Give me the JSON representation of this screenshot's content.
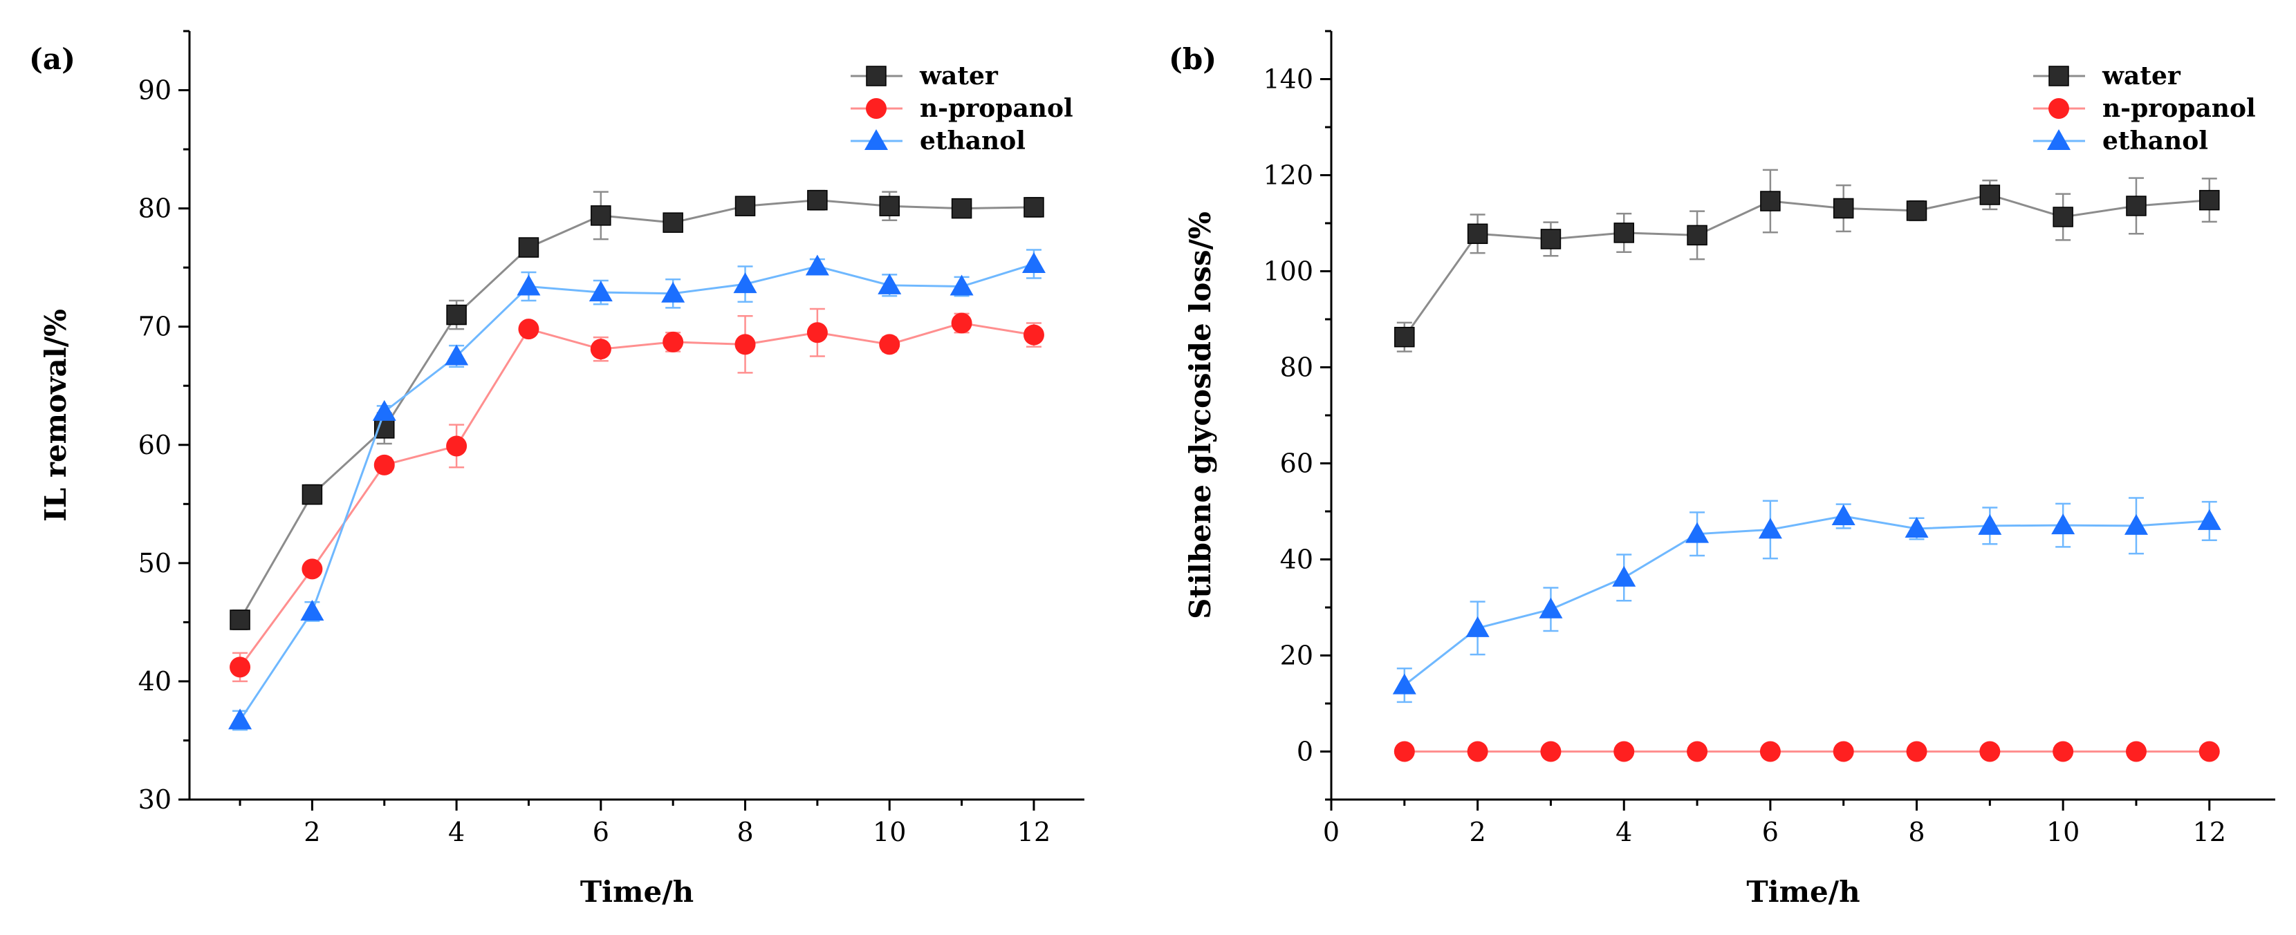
{
  "chart_data": [
    {
      "panel_label": "(a)",
      "type": "line",
      "xlabel": "Time/h",
      "ylabel": "IL removal/%",
      "xlim": [
        0.3,
        12.7
      ],
      "ylim": [
        30,
        95
      ],
      "xticks": [
        2,
        4,
        6,
        8,
        10,
        12
      ],
      "xtick_labels": [
        "2",
        "4",
        "6",
        "8",
        "10",
        "12"
      ],
      "yticks": [
        30,
        40,
        50,
        60,
        70,
        80,
        90
      ],
      "ytick_labels": [
        "30",
        "40",
        "50",
        "60",
        "70",
        "80",
        "90"
      ],
      "legend_position": "top-right",
      "x": [
        1,
        2,
        3,
        4,
        5,
        6,
        7,
        8,
        9,
        10,
        11,
        12
      ],
      "series": [
        {
          "name": "water",
          "marker": "square",
          "marker_color": "#2b2b2b",
          "line_color": "#8c8c8c",
          "values": [
            45.2,
            55.8,
            61.4,
            71.0,
            76.7,
            79.4,
            78.8,
            80.2,
            80.7,
            80.2,
            80.0,
            80.1
          ],
          "errors": [
            0.8,
            0.8,
            1.3,
            1.2,
            0.6,
            2.0,
            0.5,
            0.6,
            0.8,
            1.2,
            0.4,
            0.8
          ]
        },
        {
          "name": "n-propanol",
          "marker": "circle",
          "marker_color": "#ff2020",
          "line_color": "#ff8f8f",
          "values": [
            41.2,
            49.5,
            58.3,
            59.9,
            69.8,
            68.1,
            68.7,
            68.5,
            69.5,
            68.5,
            70.3,
            69.3
          ],
          "errors": [
            1.2,
            0.5,
            0.6,
            1.8,
            0.5,
            1.0,
            0.8,
            2.4,
            2.0,
            0.6,
            0.8,
            1.0
          ]
        },
        {
          "name": "ethanol",
          "marker": "triangle",
          "marker_color": "#1b6fff",
          "line_color": "#6fb8ff",
          "values": [
            36.7,
            45.9,
            62.8,
            67.5,
            73.4,
            72.9,
            72.8,
            73.6,
            75.1,
            73.5,
            73.4,
            75.3
          ],
          "errors": [
            0.8,
            0.8,
            0.5,
            0.9,
            1.2,
            1.0,
            1.2,
            1.5,
            0.6,
            0.9,
            0.8,
            1.2
          ]
        }
      ]
    },
    {
      "panel_label": "(b)",
      "type": "line",
      "xlabel": "Time/h",
      "ylabel": "Stilbene glycoside loss/%",
      "xlim": [
        0,
        12.9
      ],
      "ylim": [
        -10,
        150
      ],
      "xticks": [
        0,
        2,
        4,
        6,
        8,
        10,
        12
      ],
      "xtick_labels": [
        "0",
        "2",
        "4",
        "6",
        "8",
        "10",
        "12"
      ],
      "yticks": [
        0,
        20,
        40,
        60,
        80,
        100,
        120,
        140
      ],
      "ytick_labels": [
        "0",
        "20",
        "40",
        "60",
        "80",
        "100",
        "120",
        "140"
      ],
      "legend_position": "top-right",
      "x": [
        1,
        2,
        3,
        4,
        5,
        6,
        7,
        8,
        9,
        10,
        11,
        12
      ],
      "series": [
        {
          "name": "water",
          "marker": "square",
          "marker_color": "#2b2b2b",
          "line_color": "#8c8c8c",
          "values": [
            86.3,
            107.8,
            106.7,
            108.0,
            107.5,
            114.6,
            113.1,
            112.6,
            115.9,
            111.3,
            113.6,
            114.8
          ],
          "errors": [
            3.0,
            4.0,
            3.5,
            4.0,
            5.0,
            6.5,
            4.8,
            2.0,
            3.0,
            4.8,
            5.8,
            4.5
          ]
        },
        {
          "name": "n-propanol",
          "marker": "circle",
          "marker_color": "#ff2020",
          "line_color": "#ff8f8f",
          "values": [
            0,
            0,
            0,
            0,
            0,
            0,
            0,
            0,
            0,
            0,
            0,
            0
          ],
          "errors": [
            0,
            0,
            0,
            0,
            0,
            0,
            0,
            0,
            0,
            0,
            0,
            0
          ]
        },
        {
          "name": "ethanol",
          "marker": "triangle",
          "marker_color": "#1b6fff",
          "line_color": "#6fb8ff",
          "values": [
            13.8,
            25.7,
            29.6,
            36.2,
            45.3,
            46.2,
            49.0,
            46.4,
            47.0,
            47.1,
            47.0,
            48.0
          ],
          "errors": [
            3.5,
            5.5,
            4.5,
            4.8,
            4.5,
            6.0,
            2.5,
            2.2,
            3.8,
            4.5,
            5.8,
            4.0
          ]
        }
      ]
    }
  ]
}
